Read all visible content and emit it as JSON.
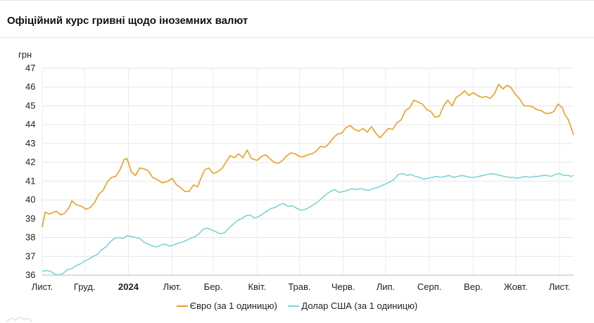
{
  "title": "Офіційний курс гривні щодо іноземних валют",
  "chart_data": {
    "type": "line",
    "ylabel": "грн",
    "ylim": [
      36,
      47
    ],
    "yticks": [
      36,
      37,
      38,
      39,
      40,
      41,
      42,
      43,
      44,
      45,
      46,
      47
    ],
    "xlim": [
      "2023-11-01",
      "2024-11-11"
    ],
    "xticks": [
      {
        "date": "2023-11-01",
        "label": "Лист.",
        "bold": false
      },
      {
        "date": "2023-12-01",
        "label": "Груд.",
        "bold": false
      },
      {
        "date": "2024-01-01",
        "label": "2024",
        "bold": true
      },
      {
        "date": "2024-02-01",
        "label": "Лют.",
        "bold": false
      },
      {
        "date": "2024-03-01",
        "label": "Бер.",
        "bold": false
      },
      {
        "date": "2024-04-01",
        "label": "Квіт.",
        "bold": false
      },
      {
        "date": "2024-05-01",
        "label": "Трав.",
        "bold": false
      },
      {
        "date": "2024-06-01",
        "label": "Черв.",
        "bold": false
      },
      {
        "date": "2024-07-01",
        "label": "Лип.",
        "bold": false
      },
      {
        "date": "2024-08-01",
        "label": "Серп.",
        "bold": false
      },
      {
        "date": "2024-09-01",
        "label": "Вер.",
        "bold": false
      },
      {
        "date": "2024-10-01",
        "label": "Жовт.",
        "bold": false
      },
      {
        "date": "2024-11-01",
        "label": "Лист.",
        "bold": false
      }
    ],
    "grid": true,
    "legend_position": "bottom",
    "series": [
      {
        "name": "Євро (за 1 одиницю)",
        "color": "#e8a020",
        "points": [
          [
            "2023-11-01",
            38.55
          ],
          [
            "2023-11-03",
            39.35
          ],
          [
            "2023-11-06",
            39.25
          ],
          [
            "2023-11-09",
            39.35
          ],
          [
            "2023-11-11",
            39.4
          ],
          [
            "2023-11-14",
            39.2
          ],
          [
            "2023-11-17",
            39.3
          ],
          [
            "2023-11-20",
            39.6
          ],
          [
            "2023-11-22",
            39.95
          ],
          [
            "2023-11-25",
            39.75
          ],
          [
            "2023-11-29",
            39.65
          ],
          [
            "2023-12-02",
            39.5
          ],
          [
            "2023-12-05",
            39.6
          ],
          [
            "2023-12-08",
            39.85
          ],
          [
            "2023-12-11",
            40.3
          ],
          [
            "2023-12-14",
            40.5
          ],
          [
            "2023-12-17",
            40.95
          ],
          [
            "2023-12-20",
            41.2
          ],
          [
            "2023-12-23",
            41.25
          ],
          [
            "2023-12-26",
            41.6
          ],
          [
            "2023-12-29",
            42.15
          ],
          [
            "2023-12-31",
            42.2
          ],
          [
            "2024-01-03",
            41.5
          ],
          [
            "2024-01-06",
            41.3
          ],
          [
            "2024-01-09",
            41.7
          ],
          [
            "2024-01-12",
            41.65
          ],
          [
            "2024-01-15",
            41.55
          ],
          [
            "2024-01-18",
            41.2
          ],
          [
            "2024-01-21",
            41.1
          ],
          [
            "2024-01-25",
            40.9
          ],
          [
            "2024-01-29",
            41.0
          ],
          [
            "2024-02-01",
            41.15
          ],
          [
            "2024-02-04",
            40.8
          ],
          [
            "2024-02-07",
            40.65
          ],
          [
            "2024-02-10",
            40.45
          ],
          [
            "2024-02-13",
            40.45
          ],
          [
            "2024-02-16",
            40.8
          ],
          [
            "2024-02-19",
            40.7
          ],
          [
            "2024-02-21",
            41.1
          ],
          [
            "2024-02-24",
            41.6
          ],
          [
            "2024-02-27",
            41.7
          ],
          [
            "2024-03-01",
            41.4
          ],
          [
            "2024-03-04",
            41.5
          ],
          [
            "2024-03-07",
            41.65
          ],
          [
            "2024-03-10",
            42.0
          ],
          [
            "2024-03-13",
            42.35
          ],
          [
            "2024-03-16",
            42.25
          ],
          [
            "2024-03-19",
            42.45
          ],
          [
            "2024-03-22",
            42.25
          ],
          [
            "2024-03-25",
            42.65
          ],
          [
            "2024-03-28",
            42.2
          ],
          [
            "2024-04-01",
            42.1
          ],
          [
            "2024-04-04",
            42.3
          ],
          [
            "2024-04-07",
            42.4
          ],
          [
            "2024-04-10",
            42.2
          ],
          [
            "2024-04-13",
            42.0
          ],
          [
            "2024-04-16",
            41.95
          ],
          [
            "2024-04-19",
            42.1
          ],
          [
            "2024-04-22",
            42.35
          ],
          [
            "2024-04-25",
            42.5
          ],
          [
            "2024-04-28",
            42.45
          ],
          [
            "2024-05-01",
            42.3
          ],
          [
            "2024-05-04",
            42.3
          ],
          [
            "2024-05-07",
            42.4
          ],
          [
            "2024-05-10",
            42.45
          ],
          [
            "2024-05-13",
            42.6
          ],
          [
            "2024-05-16",
            42.85
          ],
          [
            "2024-05-19",
            42.8
          ],
          [
            "2024-05-22",
            43.0
          ],
          [
            "2024-05-25",
            43.3
          ],
          [
            "2024-05-28",
            43.5
          ],
          [
            "2024-05-31",
            43.55
          ],
          [
            "2024-06-03",
            43.85
          ],
          [
            "2024-06-06",
            43.95
          ],
          [
            "2024-06-09",
            43.75
          ],
          [
            "2024-06-12",
            43.65
          ],
          [
            "2024-06-15",
            43.8
          ],
          [
            "2024-06-18",
            43.6
          ],
          [
            "2024-06-21",
            43.9
          ],
          [
            "2024-06-24",
            43.55
          ],
          [
            "2024-06-27",
            43.3
          ],
          [
            "2024-06-30",
            43.55
          ],
          [
            "2024-07-03",
            43.8
          ],
          [
            "2024-07-06",
            43.75
          ],
          [
            "2024-07-09",
            44.1
          ],
          [
            "2024-07-12",
            44.25
          ],
          [
            "2024-07-15",
            44.75
          ],
          [
            "2024-07-18",
            44.9
          ],
          [
            "2024-07-21",
            45.3
          ],
          [
            "2024-07-24",
            45.2
          ],
          [
            "2024-07-27",
            45.1
          ],
          [
            "2024-07-30",
            44.8
          ],
          [
            "2024-08-02",
            44.7
          ],
          [
            "2024-08-05",
            44.4
          ],
          [
            "2024-08-08",
            44.45
          ],
          [
            "2024-08-11",
            45.0
          ],
          [
            "2024-08-14",
            45.3
          ],
          [
            "2024-08-17",
            45.0
          ],
          [
            "2024-08-20",
            45.45
          ],
          [
            "2024-08-23",
            45.6
          ],
          [
            "2024-08-26",
            45.8
          ],
          [
            "2024-08-29",
            45.55
          ],
          [
            "2024-09-01",
            45.7
          ],
          [
            "2024-09-04",
            45.55
          ],
          [
            "2024-09-07",
            45.45
          ],
          [
            "2024-09-10",
            45.5
          ],
          [
            "2024-09-13",
            45.4
          ],
          [
            "2024-09-16",
            45.65
          ],
          [
            "2024-09-19",
            46.15
          ],
          [
            "2024-09-22",
            45.9
          ],
          [
            "2024-09-25",
            46.1
          ],
          [
            "2024-09-28",
            45.95
          ],
          [
            "2024-10-01",
            45.6
          ],
          [
            "2024-10-04",
            45.35
          ],
          [
            "2024-10-07",
            45.0
          ],
          [
            "2024-10-10",
            45.0
          ],
          [
            "2024-10-13",
            44.95
          ],
          [
            "2024-10-16",
            44.8
          ],
          [
            "2024-10-19",
            44.75
          ],
          [
            "2024-10-22",
            44.6
          ],
          [
            "2024-10-25",
            44.6
          ],
          [
            "2024-10-28",
            44.7
          ],
          [
            "2024-10-31",
            45.1
          ],
          [
            "2024-11-03",
            44.9
          ],
          [
            "2024-11-05",
            44.5
          ],
          [
            "2024-11-07",
            44.3
          ],
          [
            "2024-11-09",
            43.9
          ],
          [
            "2024-11-11",
            43.45
          ]
        ]
      },
      {
        "name": "Долар США (за 1 одиницю)",
        "color": "#7fd3d3",
        "points": [
          [
            "2023-11-01",
            36.2
          ],
          [
            "2023-11-04",
            36.25
          ],
          [
            "2023-11-07",
            36.2
          ],
          [
            "2023-11-10",
            36.05
          ],
          [
            "2023-11-13",
            36.0
          ],
          [
            "2023-11-16",
            36.1
          ],
          [
            "2023-11-19",
            36.3
          ],
          [
            "2023-11-22",
            36.35
          ],
          [
            "2023-11-25",
            36.5
          ],
          [
            "2023-11-28",
            36.6
          ],
          [
            "2023-12-01",
            36.75
          ],
          [
            "2023-12-04",
            36.85
          ],
          [
            "2023-12-07",
            37.0
          ],
          [
            "2023-12-10",
            37.1
          ],
          [
            "2023-12-13",
            37.35
          ],
          [
            "2023-12-16",
            37.5
          ],
          [
            "2023-12-19",
            37.75
          ],
          [
            "2023-12-22",
            37.95
          ],
          [
            "2023-12-25",
            38.0
          ],
          [
            "2023-12-28",
            37.95
          ],
          [
            "2023-12-31",
            38.1
          ],
          [
            "2024-01-03",
            38.05
          ],
          [
            "2024-01-06",
            38.0
          ],
          [
            "2024-01-09",
            37.95
          ],
          [
            "2024-01-12",
            37.75
          ],
          [
            "2024-01-15",
            37.65
          ],
          [
            "2024-01-18",
            37.55
          ],
          [
            "2024-01-21",
            37.5
          ],
          [
            "2024-01-24",
            37.6
          ],
          [
            "2024-01-27",
            37.65
          ],
          [
            "2024-01-30",
            37.55
          ],
          [
            "2024-02-02",
            37.6
          ],
          [
            "2024-02-05",
            37.7
          ],
          [
            "2024-02-08",
            37.75
          ],
          [
            "2024-02-11",
            37.85
          ],
          [
            "2024-02-14",
            37.95
          ],
          [
            "2024-02-17",
            38.05
          ],
          [
            "2024-02-20",
            38.2
          ],
          [
            "2024-02-23",
            38.45
          ],
          [
            "2024-02-26",
            38.5
          ],
          [
            "2024-02-29",
            38.4
          ],
          [
            "2024-03-03",
            38.3
          ],
          [
            "2024-03-06",
            38.2
          ],
          [
            "2024-03-09",
            38.25
          ],
          [
            "2024-03-12",
            38.5
          ],
          [
            "2024-03-15",
            38.7
          ],
          [
            "2024-03-18",
            38.9
          ],
          [
            "2024-03-21",
            39.0
          ],
          [
            "2024-03-24",
            39.15
          ],
          [
            "2024-03-27",
            39.2
          ],
          [
            "2024-03-30",
            39.05
          ],
          [
            "2024-04-02",
            39.1
          ],
          [
            "2024-04-05",
            39.25
          ],
          [
            "2024-04-08",
            39.4
          ],
          [
            "2024-04-11",
            39.55
          ],
          [
            "2024-04-14",
            39.6
          ],
          [
            "2024-04-17",
            39.75
          ],
          [
            "2024-04-20",
            39.8
          ],
          [
            "2024-04-23",
            39.65
          ],
          [
            "2024-04-26",
            39.7
          ],
          [
            "2024-04-29",
            39.55
          ],
          [
            "2024-05-02",
            39.45
          ],
          [
            "2024-05-05",
            39.5
          ],
          [
            "2024-05-08",
            39.6
          ],
          [
            "2024-05-11",
            39.75
          ],
          [
            "2024-05-14",
            39.9
          ],
          [
            "2024-05-17",
            40.1
          ],
          [
            "2024-05-20",
            40.3
          ],
          [
            "2024-05-23",
            40.45
          ],
          [
            "2024-05-26",
            40.55
          ],
          [
            "2024-05-29",
            40.4
          ],
          [
            "2024-06-01",
            40.45
          ],
          [
            "2024-06-04",
            40.5
          ],
          [
            "2024-06-07",
            40.6
          ],
          [
            "2024-06-10",
            40.55
          ],
          [
            "2024-06-13",
            40.6
          ],
          [
            "2024-06-16",
            40.55
          ],
          [
            "2024-06-19",
            40.5
          ],
          [
            "2024-06-22",
            40.6
          ],
          [
            "2024-06-25",
            40.65
          ],
          [
            "2024-06-28",
            40.75
          ],
          [
            "2024-07-01",
            40.85
          ],
          [
            "2024-07-04",
            40.95
          ],
          [
            "2024-07-07",
            41.1
          ],
          [
            "2024-07-10",
            41.35
          ],
          [
            "2024-07-13",
            41.4
          ],
          [
            "2024-07-16",
            41.3
          ],
          [
            "2024-07-19",
            41.35
          ],
          [
            "2024-07-22",
            41.25
          ],
          [
            "2024-07-25",
            41.2
          ],
          [
            "2024-07-28",
            41.1
          ],
          [
            "2024-07-31",
            41.15
          ],
          [
            "2024-08-03",
            41.2
          ],
          [
            "2024-08-06",
            41.25
          ],
          [
            "2024-08-09",
            41.2
          ],
          [
            "2024-08-12",
            41.25
          ],
          [
            "2024-08-15",
            41.3
          ],
          [
            "2024-08-18",
            41.2
          ],
          [
            "2024-08-21",
            41.25
          ],
          [
            "2024-08-24",
            41.3
          ],
          [
            "2024-08-27",
            41.25
          ],
          [
            "2024-08-30",
            41.2
          ],
          [
            "2024-09-02",
            41.2
          ],
          [
            "2024-09-05",
            41.25
          ],
          [
            "2024-09-08",
            41.3
          ],
          [
            "2024-09-11",
            41.35
          ],
          [
            "2024-09-14",
            41.4
          ],
          [
            "2024-09-17",
            41.35
          ],
          [
            "2024-09-20",
            41.3
          ],
          [
            "2024-09-23",
            41.25
          ],
          [
            "2024-09-26",
            41.2
          ],
          [
            "2024-09-29",
            41.2
          ],
          [
            "2024-10-02",
            41.15
          ],
          [
            "2024-10-05",
            41.2
          ],
          [
            "2024-10-08",
            41.25
          ],
          [
            "2024-10-11",
            41.2
          ],
          [
            "2024-10-14",
            41.25
          ],
          [
            "2024-10-17",
            41.25
          ],
          [
            "2024-10-20",
            41.3
          ],
          [
            "2024-10-23",
            41.3
          ],
          [
            "2024-10-26",
            41.25
          ],
          [
            "2024-10-29",
            41.35
          ],
          [
            "2024-11-01",
            41.4
          ],
          [
            "2024-11-04",
            41.3
          ],
          [
            "2024-11-07",
            41.3
          ],
          [
            "2024-11-09",
            41.25
          ],
          [
            "2024-11-11",
            41.3
          ]
        ]
      }
    ]
  }
}
